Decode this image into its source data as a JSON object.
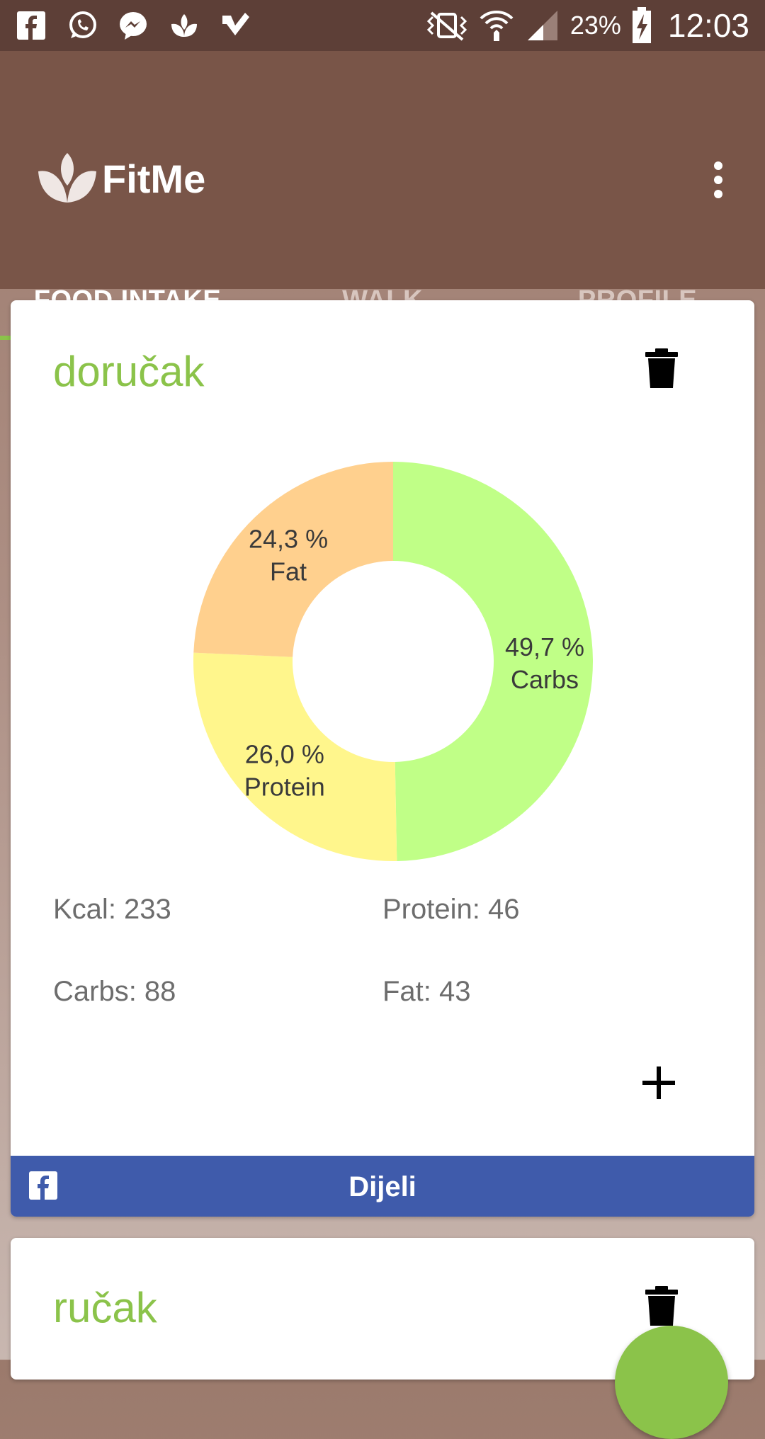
{
  "status_bar": {
    "battery": "23%",
    "time": "12:03",
    "left_icons": [
      "facebook-icon",
      "whatsapp-icon",
      "messenger-icon",
      "fitme-icon",
      "check-app-icon"
    ],
    "right_icons": [
      "vibrate-icon",
      "wifi-icon",
      "signal-icon",
      "battery-charging-icon"
    ]
  },
  "app_bar": {
    "title": "FitMe",
    "logo_icon": "lotus-leaf-icon",
    "menu_icon": "more-vert-icon"
  },
  "tabs": [
    {
      "label": "FOOD INTAKE",
      "active": true
    },
    {
      "label": "WALK",
      "active": false
    },
    {
      "label": "PROFILE",
      "active": false
    }
  ],
  "meals": [
    {
      "title": "doručak",
      "stats": {
        "kcal": "Kcal: 233",
        "protein": "Protein: 46",
        "carbs": "Carbs: 88",
        "fat": "Fat: 43"
      },
      "share_label": "Dijeli"
    },
    {
      "title": "ručak"
    }
  ],
  "chart_data": {
    "type": "pie",
    "donut": true,
    "slices": [
      {
        "label": "Carbs",
        "value": 49.7,
        "display": "49,7 %",
        "color": "#c0ff87"
      },
      {
        "label": "Protein",
        "value": 26.0,
        "display": "26,0 %",
        "color": "#fff68c"
      },
      {
        "label": "Fat",
        "value": 24.3,
        "display": "24,3 %",
        "color": "#ffd08e"
      }
    ]
  },
  "colors": {
    "status_bar": "#5d3f37",
    "app_bar": "#795548",
    "accent": "#8bc34a",
    "share_button": "#3f5bab"
  }
}
